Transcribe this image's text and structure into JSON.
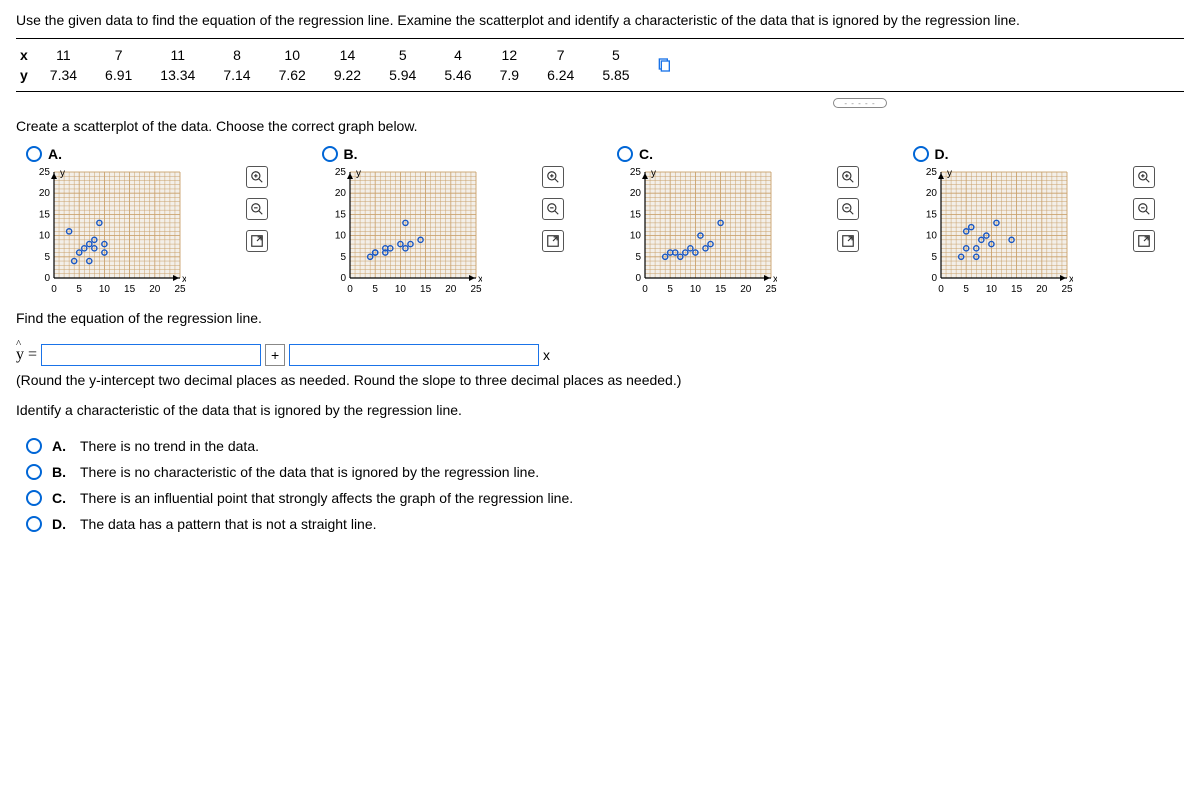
{
  "question": "Use the given data to find the equation of the regression line. Examine the scatterplot and identify a characteristic of the data that is ignored by the regression line.",
  "data_table": {
    "rows": [
      {
        "label": "x",
        "cells": [
          "11",
          "7",
          "11",
          "8",
          "10",
          "14",
          "5",
          "4",
          "12",
          "7",
          "5"
        ]
      },
      {
        "label": "y",
        "cells": [
          "7.34",
          "6.91",
          "13.34",
          "7.14",
          "7.62",
          "9.22",
          "5.94",
          "5.46",
          "7.9",
          "6.24",
          "5.85"
        ]
      }
    ]
  },
  "subq1": "Create a scatterplot of the data. Choose the correct graph below.",
  "axis": {
    "x_min": 0,
    "x_max": 25,
    "y_min": 0,
    "y_max": 25,
    "x_ticks": [
      0,
      5,
      10,
      15,
      20,
      25
    ],
    "y_ticks": [
      0,
      5,
      10,
      15,
      20,
      25
    ],
    "xlabel": "x",
    "ylabel": "y"
  },
  "plots": {
    "A": {
      "label": "A.",
      "pts": [
        [
          3,
          11
        ],
        [
          4,
          4
        ],
        [
          5,
          6
        ],
        [
          6,
          7
        ],
        [
          7,
          8
        ],
        [
          7,
          4
        ],
        [
          8,
          9
        ],
        [
          8,
          7
        ],
        [
          9,
          13
        ],
        [
          10,
          6
        ],
        [
          10,
          8
        ]
      ]
    },
    "B": {
      "label": "B.",
      "pts": [
        [
          4,
          5
        ],
        [
          5,
          6
        ],
        [
          5,
          6
        ],
        [
          7,
          6
        ],
        [
          7,
          7
        ],
        [
          8,
          7
        ],
        [
          10,
          8
        ],
        [
          11,
          7
        ],
        [
          11,
          13
        ],
        [
          12,
          8
        ],
        [
          14,
          9
        ]
      ]
    },
    "C": {
      "label": "C.",
      "pts": [
        [
          4,
          5
        ],
        [
          5,
          6
        ],
        [
          6,
          6
        ],
        [
          7,
          5
        ],
        [
          8,
          6
        ],
        [
          9,
          7
        ],
        [
          10,
          6
        ],
        [
          11,
          10
        ],
        [
          12,
          7
        ],
        [
          13,
          8
        ],
        [
          15,
          13
        ]
      ]
    },
    "D": {
      "label": "D.",
      "pts": [
        [
          4,
          5
        ],
        [
          5,
          7
        ],
        [
          5,
          11
        ],
        [
          6,
          12
        ],
        [
          7,
          5
        ],
        [
          7,
          7
        ],
        [
          8,
          9
        ],
        [
          9,
          10
        ],
        [
          10,
          8
        ],
        [
          11,
          13
        ],
        [
          14,
          9
        ]
      ]
    }
  },
  "subq2": "Find the equation of the regression line.",
  "eq_prefix": "y =",
  "eq_suffix_var": "x",
  "round_note": "(Round the y-intercept two decimal places as needed. Round the slope to three decimal places as needed.)",
  "subq3": "Identify a characteristic of the data that is ignored by the regression line.",
  "mc": [
    {
      "label": "A.",
      "text": "There is no trend in the data."
    },
    {
      "label": "B.",
      "text": "There is no characteristic of the data that is ignored by the regression line."
    },
    {
      "label": "C.",
      "text": "There is an influential point that strongly affects the graph of the regression line."
    },
    {
      "label": "D.",
      "text": "The data has a pattern that is not a straight line."
    }
  ]
}
